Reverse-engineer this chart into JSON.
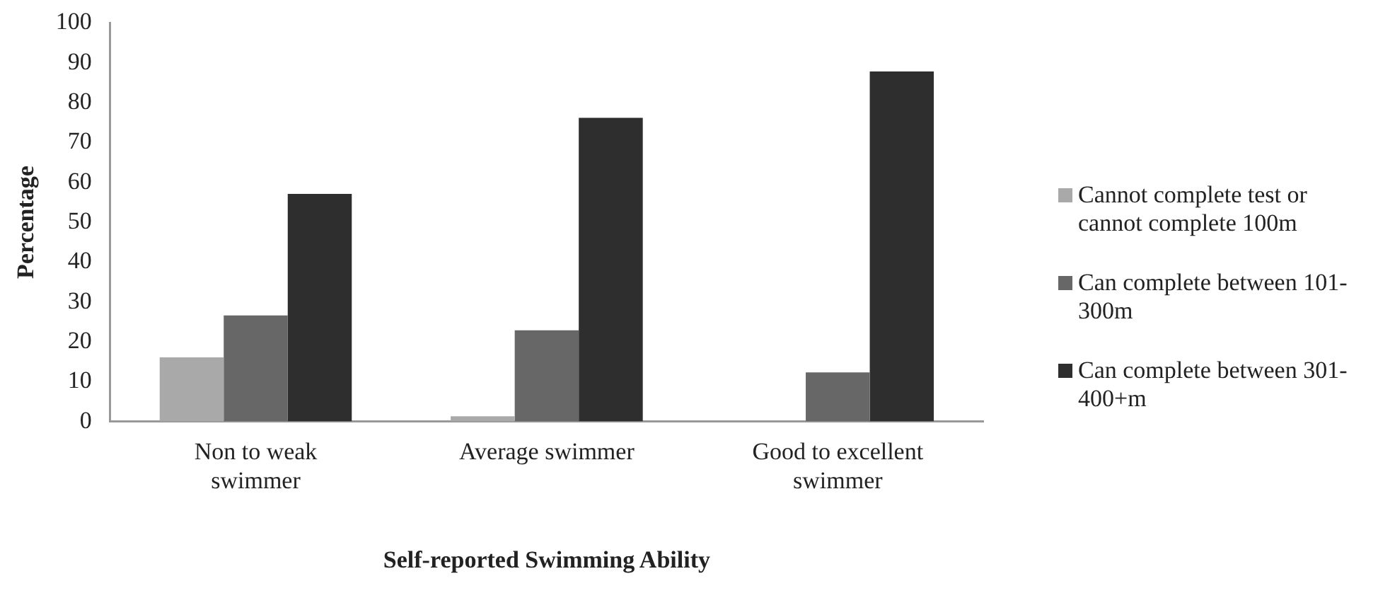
{
  "chart_data": {
    "type": "bar",
    "xlabel": "Self-reported Swimming Ability",
    "ylabel": "Percentage",
    "categories": [
      "Non to weak swimmer",
      "Average swimmer",
      "Good to excellent swimmer"
    ],
    "series": [
      {
        "name": "Cannot complete test or cannot complete 100m",
        "color": "#a9a9a9",
        "values": [
          16.1,
          1.3,
          0
        ]
      },
      {
        "name": "Can complete between 101-300m",
        "color": "#676767",
        "values": [
          26.6,
          22.9,
          12.3
        ]
      },
      {
        "name": "Can complete between 301-400+m",
        "color": "#2e2e2e",
        "values": [
          57.1,
          76.2,
          87.8
        ]
      }
    ],
    "ylim": [
      0,
      100
    ],
    "yticks": [
      0,
      10,
      20,
      30,
      40,
      50,
      60,
      70,
      80,
      90,
      100
    ],
    "grid": false,
    "legend": "right"
  }
}
